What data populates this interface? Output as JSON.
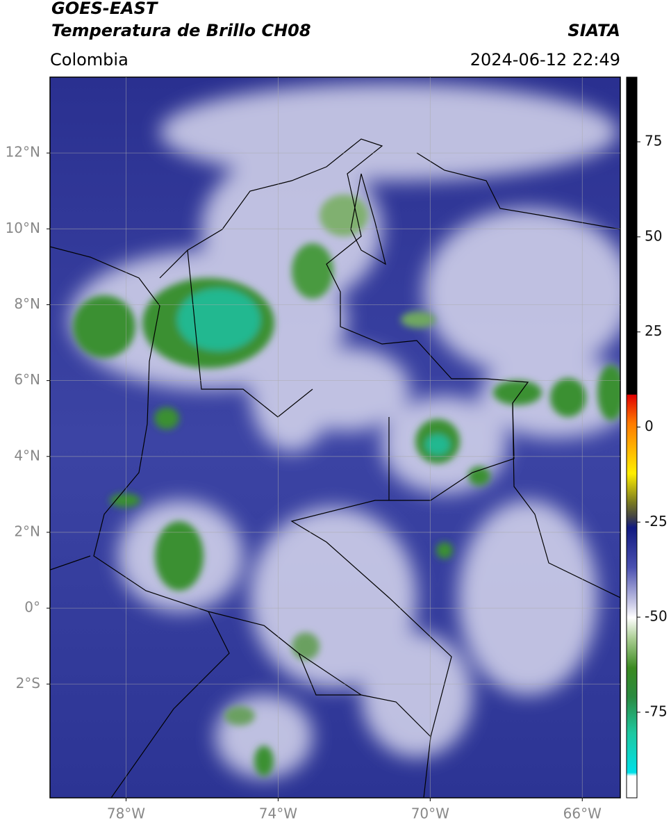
{
  "header": {
    "title": "GOES-EAST",
    "subtitle": "Temperatura de Brillo CH08",
    "region": "Colombia",
    "source": "SIATA",
    "datetime": "2024-06-12 22:49"
  },
  "map": {
    "xlim": [
      -80,
      -65
    ],
    "ylim": [
      -5,
      14
    ],
    "xticks": [
      {
        "value": -78,
        "label": "78°W"
      },
      {
        "value": -74,
        "label": "74°W"
      },
      {
        "value": -70,
        "label": "70°W"
      },
      {
        "value": -66,
        "label": "66°W"
      }
    ],
    "yticks": [
      {
        "value": 12,
        "label": "12°N"
      },
      {
        "value": 10,
        "label": "10°N"
      },
      {
        "value": 8,
        "label": "8°N"
      },
      {
        "value": 6,
        "label": "6°N"
      },
      {
        "value": 4,
        "label": "4°N"
      },
      {
        "value": 2,
        "label": "2°N"
      },
      {
        "value": 0,
        "label": "0°"
      },
      {
        "value": -2,
        "label": "2°S"
      }
    ],
    "grid": true
  },
  "colorbar": {
    "lim": [
      -97.5,
      92
    ],
    "ticks": [
      75,
      50,
      25,
      0,
      -25,
      -50,
      -75
    ]
  }
}
